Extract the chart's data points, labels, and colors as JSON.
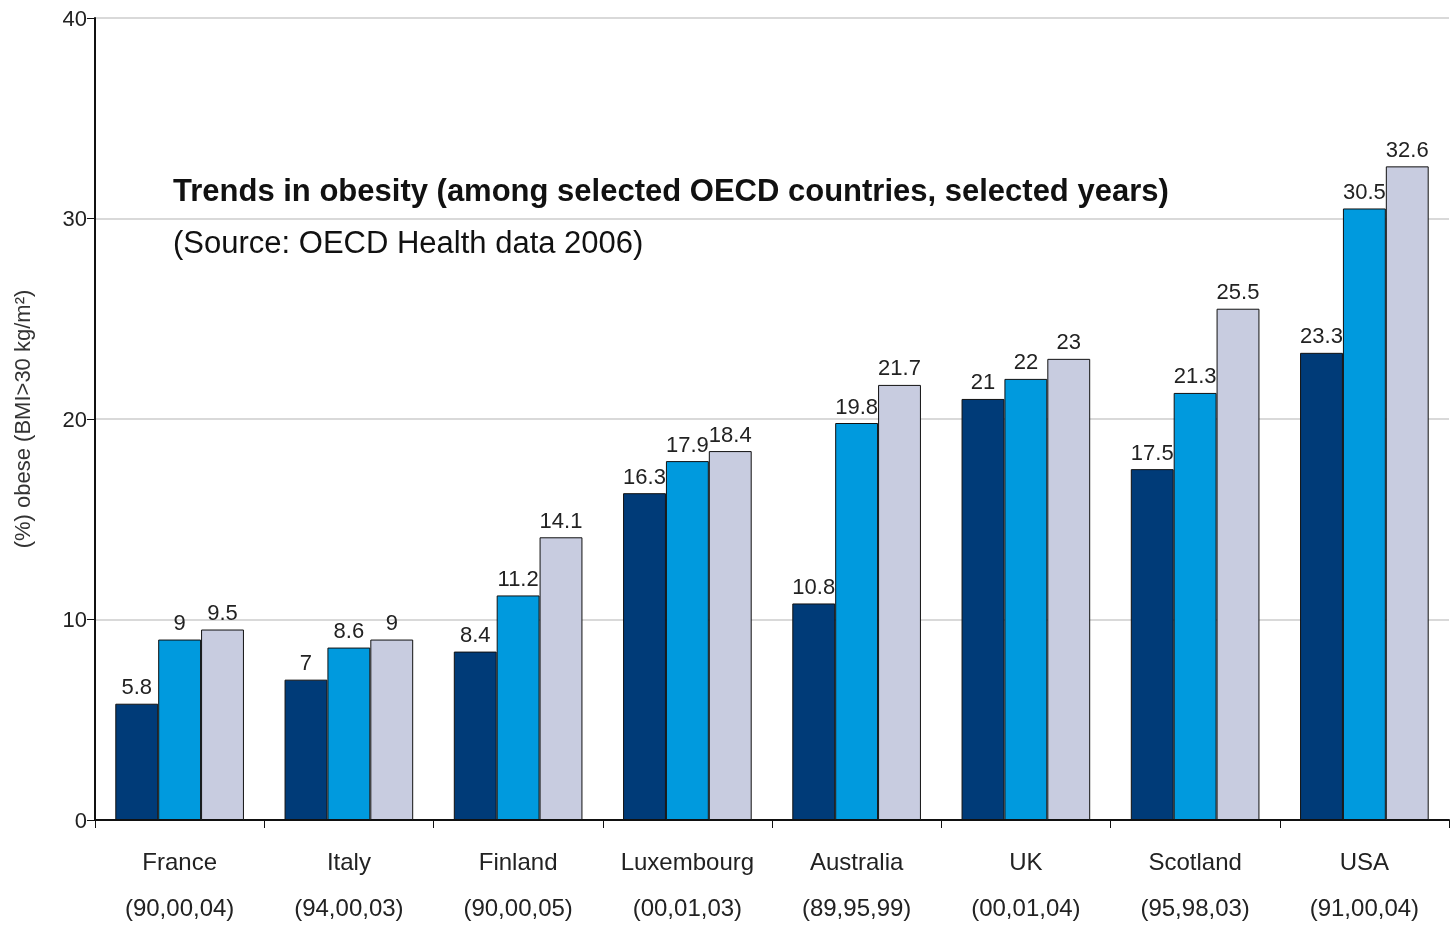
{
  "chart_data": {
    "type": "bar",
    "title": "Trends in obesity (among selected OECD countries, selected years)",
    "subtitle": "(Source: OECD Health data 2006)",
    "ylabel": "(%) obese (BMI>30 kg/m²)",
    "categories": [
      "France\n(90,00,04)",
      "Italy\n(94,00,03)",
      "Finland\n(90,00,05)",
      "Luxembourg\n(00,01,03)",
      "Australia\n(89,95,99)",
      "UK\n(00,01,04)",
      "Scotland\n(95,98,03)",
      "USA\n(91,00,04)"
    ],
    "series": [
      {
        "color": "#003b78",
        "values": [
          5.8,
          7,
          8.4,
          16.3,
          10.8,
          21,
          17.5,
          23.3
        ]
      },
      {
        "color": "#009ade",
        "values": [
          9,
          8.6,
          11.2,
          17.9,
          19.8,
          22,
          21.3,
          30.5
        ]
      },
      {
        "color": "#c8cce0",
        "values": [
          9.5,
          9,
          14.1,
          18.4,
          21.7,
          23,
          25.5,
          32.6
        ]
      }
    ],
    "ylim": [
      0,
      40
    ],
    "yticks": [
      0,
      10,
      20,
      30,
      40
    ],
    "grid": "y",
    "data_labels": true
  }
}
